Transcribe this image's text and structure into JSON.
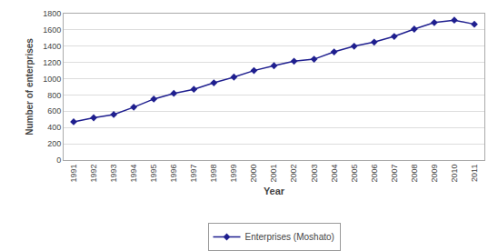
{
  "chart_data": {
    "type": "line",
    "x": [
      1991,
      1992,
      1993,
      1994,
      1995,
      1996,
      1997,
      1998,
      1999,
      2000,
      2001,
      2002,
      2003,
      2004,
      2005,
      2006,
      2007,
      2008,
      2009,
      2010,
      2011
    ],
    "series": [
      {
        "name": "Enterprises (Moshato)",
        "color": "#1F1F8F",
        "marker": "diamond",
        "values": [
          470,
          520,
          560,
          650,
          750,
          820,
          870,
          950,
          1020,
          1100,
          1160,
          1215,
          1240,
          1330,
          1400,
          1450,
          1520,
          1610,
          1690,
          1720,
          1670
        ]
      }
    ],
    "xlabel": "Year",
    "ylabel": "Number of enterprises",
    "xlim": [
      1990.5,
      2011.5
    ],
    "xticks": [
      1991,
      1992,
      1993,
      1994,
      1995,
      1996,
      1997,
      1998,
      1999,
      2000,
      2001,
      2002,
      2003,
      2004,
      2005,
      2006,
      2007,
      2008,
      2009,
      2010,
      2011
    ],
    "ylim": [
      0,
      1800
    ],
    "yticks": [
      0,
      200,
      400,
      600,
      800,
      1000,
      1200,
      1400,
      1600,
      1800
    ],
    "grid": "y",
    "legend": "bottom"
  }
}
